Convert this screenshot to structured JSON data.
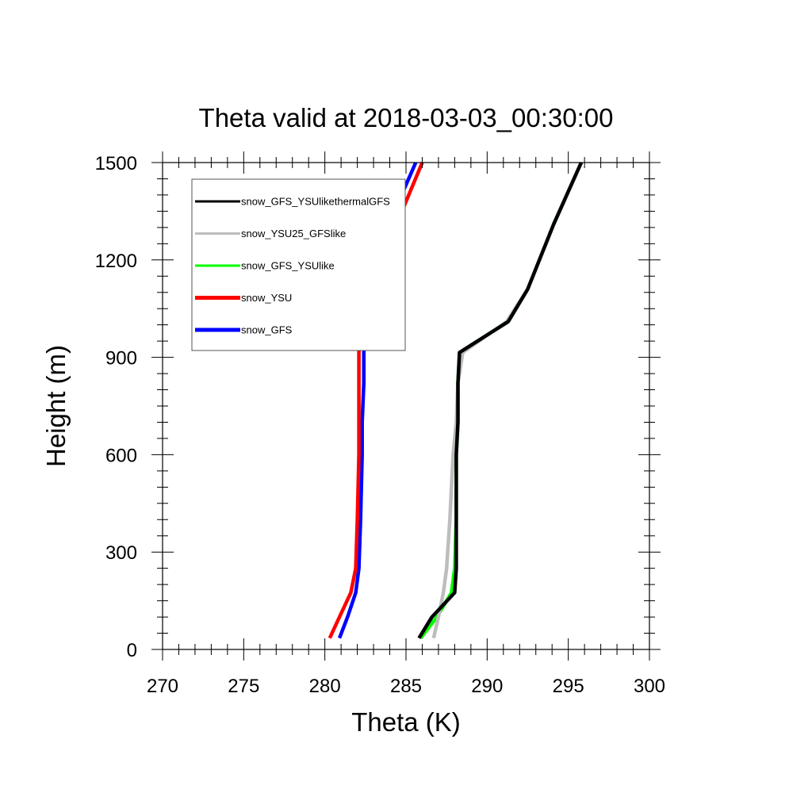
{
  "chart_data": {
    "type": "line",
    "title": "Theta valid at 2018-03-03_00:30:00",
    "xlabel": "Theta (K)",
    "ylabel": "Height (m)",
    "xlim": [
      270,
      300
    ],
    "ylim": [
      0,
      1500
    ],
    "xticks": [
      "270",
      "275",
      "280",
      "285",
      "290",
      "295",
      "300"
    ],
    "yticks": [
      "0",
      "300",
      "600",
      "900",
      "1200",
      "1500"
    ],
    "grid": false,
    "legend_position": "top-left",
    "series": [
      {
        "name": "snow_GFS_YSUlikethermalGFS",
        "color": "#000000",
        "x": [
          285.8,
          286.6,
          288.0,
          288.1,
          288.1,
          288.1,
          288.2,
          288.2,
          288.3,
          291.3,
          292.5,
          294.1,
          295.8
        ],
        "y": [
          35,
          100,
          175,
          250,
          400,
          600,
          700,
          820,
          915,
          1010,
          1110,
          1310,
          1500
        ]
      },
      {
        "name": "snow_YSU25_GFSlike",
        "color": "#bdbdbd",
        "x": [
          286.7,
          287.0,
          287.3,
          287.5,
          287.7,
          287.9,
          288.1,
          288.2,
          288.5,
          291.2,
          292.5,
          294.1,
          295.8
        ],
        "y": [
          35,
          100,
          175,
          250,
          400,
          600,
          700,
          820,
          915,
          1010,
          1110,
          1310,
          1500
        ]
      },
      {
        "name": "snow_GFS_YSUlike",
        "color": "#00ff00",
        "x": [
          285.9,
          286.9,
          287.8,
          288.0,
          288.1,
          288.1,
          288.2,
          288.2,
          288.3,
          291.3,
          292.5,
          294.1,
          295.8
        ],
        "y": [
          35,
          100,
          175,
          250,
          400,
          600,
          700,
          820,
          915,
          1010,
          1110,
          1310,
          1500
        ]
      },
      {
        "name": "snow_YSU",
        "color": "#ff0000",
        "x": [
          280.3,
          280.9,
          281.6,
          281.9,
          282.0,
          282.1,
          282.1,
          282.1,
          282.1,
          282.2,
          282.8,
          283.5,
          286.0
        ],
        "y": [
          35,
          100,
          175,
          250,
          400,
          600,
          700,
          820,
          915,
          1000,
          1100,
          1200,
          1500
        ]
      },
      {
        "name": "snow_GFS",
        "color": "#0000ff",
        "x": [
          280.9,
          281.4,
          281.9,
          282.1,
          282.2,
          282.3,
          282.3,
          282.4,
          282.4,
          282.5,
          282.8,
          283.4,
          284.9,
          285.6
        ],
        "y": [
          35,
          100,
          175,
          250,
          400,
          600,
          700,
          820,
          915,
          1000,
          1190,
          1300,
          1420,
          1500
        ]
      }
    ]
  }
}
